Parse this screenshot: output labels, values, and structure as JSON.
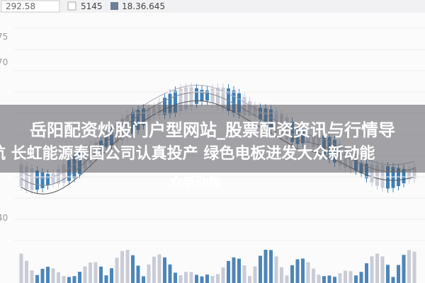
{
  "legend": {
    "price": "292.58",
    "volume": "5145",
    "amount": "18.36.645"
  },
  "axis_labels": [
    "75",
    "70",
    "40"
  ],
  "headline": {
    "line1": "岳阳配资炒股门户型网站_股票配资资讯与行情导",
    "line2": "航 长虹能源泰国公司认真投产 绿色电板进发大众新动能",
    "line3": "众新动能"
  }
}
